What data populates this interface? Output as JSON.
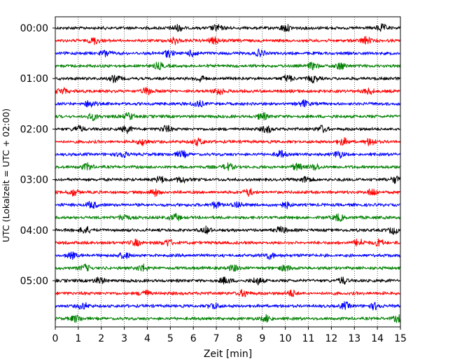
{
  "chart_data": {
    "type": "line",
    "title": "",
    "xlabel": "Zeit  [min]",
    "ylabel": "UTC (Lokalzeit = UTC + 02:00)",
    "xlim": [
      0,
      15
    ],
    "xticks": [
      "0",
      "1",
      "2",
      "3",
      "4",
      "5",
      "6",
      "7",
      "8",
      "9",
      "10",
      "11",
      "12",
      "13",
      "14",
      "15"
    ],
    "yticks": [
      "00:00",
      "01:00",
      "02:00",
      "03:00",
      "04:00",
      "05:00"
    ],
    "grid": "vertical dotted lines at each minute",
    "trace_interval_minutes": 15,
    "trace_count": 24,
    "trace_colors": [
      "#000000",
      "#ff0000",
      "#0000ff",
      "#008000"
    ],
    "series": [
      {
        "start": "00:00",
        "color": "#000000",
        "events_min": [
          5.3,
          7.0,
          10.0,
          14.2
        ]
      },
      {
        "start": "00:15",
        "color": "#ff0000",
        "events_min": [
          1.7,
          5.2,
          6.9,
          13.5
        ]
      },
      {
        "start": "00:30",
        "color": "#0000ff",
        "events_min": [
          2.2,
          4.9,
          6.0,
          8.9
        ]
      },
      {
        "start": "00:45",
        "color": "#008000",
        "events_min": [
          4.5,
          11.2,
          12.4
        ]
      },
      {
        "start": "01:00",
        "color": "#000000",
        "events_min": [
          2.6,
          6.3,
          10.1,
          11.2
        ]
      },
      {
        "start": "01:15",
        "color": "#ff0000",
        "events_min": [
          0.3,
          4.0,
          7.1,
          13.6
        ]
      },
      {
        "start": "01:30",
        "color": "#0000ff",
        "events_min": [
          1.5,
          6.2,
          10.8
        ]
      },
      {
        "start": "01:45",
        "color": "#008000",
        "events_min": [
          1.6,
          3.2,
          9.0
        ]
      },
      {
        "start": "02:00",
        "color": "#000000",
        "events_min": [
          1.0,
          3.1,
          4.8,
          9.2,
          11.6
        ]
      },
      {
        "start": "02:15",
        "color": "#ff0000",
        "events_min": [
          3.8,
          6.2,
          12.5,
          13.7
        ]
      },
      {
        "start": "02:30",
        "color": "#0000ff",
        "events_min": [
          2.9,
          5.5,
          9.8,
          12.3
        ]
      },
      {
        "start": "02:45",
        "color": "#008000",
        "events_min": [
          1.4,
          7.5,
          10.5,
          11.3
        ]
      },
      {
        "start": "03:00",
        "color": "#000000",
        "events_min": [
          4.6,
          5.5,
          10.9,
          14.8
        ]
      },
      {
        "start": "03:15",
        "color": "#ff0000",
        "events_min": [
          0.8,
          4.3,
          8.4,
          13.8
        ]
      },
      {
        "start": "03:30",
        "color": "#0000ff",
        "events_min": [
          1.6,
          7.0,
          7.9,
          10.0
        ]
      },
      {
        "start": "03:45",
        "color": "#008000",
        "events_min": [
          3.0,
          5.2,
          12.3
        ]
      },
      {
        "start": "04:00",
        "color": "#000000",
        "events_min": [
          1.3,
          6.6,
          9.8,
          14.7
        ]
      },
      {
        "start": "04:15",
        "color": "#ff0000",
        "events_min": [
          3.5,
          4.9,
          13.2,
          14.1
        ]
      },
      {
        "start": "04:30",
        "color": "#0000ff",
        "events_min": [
          0.7,
          3.0,
          9.3
        ]
      },
      {
        "start": "04:45",
        "color": "#008000",
        "events_min": [
          1.3,
          3.8,
          7.8,
          10.0
        ]
      },
      {
        "start": "05:00",
        "color": "#000000",
        "events_min": [
          1.9,
          7.4,
          8.8,
          12.5
        ]
      },
      {
        "start": "05:15",
        "color": "#ff0000",
        "events_min": [
          3.9,
          8.2,
          10.3
        ]
      },
      {
        "start": "05:30",
        "color": "#0000ff",
        "events_min": [
          1.2,
          6.9,
          12.6,
          13.9
        ]
      },
      {
        "start": "05:45",
        "color": "#008000",
        "events_min": [
          0.9,
          9.2,
          14.9
        ]
      }
    ]
  }
}
